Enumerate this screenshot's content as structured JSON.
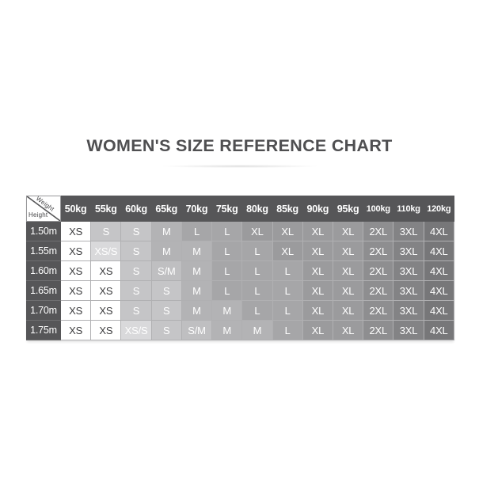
{
  "chart_data": {
    "type": "table",
    "title": "WOMEN'S SIZE REFERENCE CHART",
    "corner": {
      "top_right_label": "Weight",
      "bottom_left_label": "Height"
    },
    "weight_columns": [
      "50kg",
      "55kg",
      "60kg",
      "65kg",
      "70kg",
      "75kg",
      "80kg",
      "85kg",
      "90kg",
      "95kg",
      "100kg",
      "110kg",
      "120kg"
    ],
    "rows": [
      {
        "height": "1.50m",
        "sizes": [
          "XS",
          "S",
          "S",
          "M",
          "L",
          "L",
          "XL",
          "XL",
          "XL",
          "XL",
          "2XL",
          "3XL",
          "4XL"
        ]
      },
      {
        "height": "1.55m",
        "sizes": [
          "XS",
          "XS/S",
          "S",
          "M",
          "M",
          "L",
          "L",
          "XL",
          "XL",
          "XL",
          "2XL",
          "3XL",
          "4XL"
        ]
      },
      {
        "height": "1.60m",
        "sizes": [
          "XS",
          "XS",
          "S",
          "S/M",
          "M",
          "L",
          "L",
          "L",
          "XL",
          "XL",
          "2XL",
          "3XL",
          "4XL"
        ]
      },
      {
        "height": "1.65m",
        "sizes": [
          "XS",
          "XS",
          "S",
          "S",
          "M",
          "L",
          "L",
          "L",
          "XL",
          "XL",
          "2XL",
          "3XL",
          "4XL"
        ]
      },
      {
        "height": "1.70m",
        "sizes": [
          "XS",
          "XS",
          "S",
          "S",
          "M",
          "M",
          "L",
          "L",
          "XL",
          "XL",
          "2XL",
          "3XL",
          "4XL"
        ]
      },
      {
        "height": "1.75m",
        "sizes": [
          "XS",
          "XS",
          "XS/S",
          "S",
          "S/M",
          "M",
          "M",
          "L",
          "XL",
          "XL",
          "2XL",
          "3XL",
          "4XL"
        ]
      }
    ],
    "legend_position": "none",
    "grid": "on"
  },
  "style": {
    "header_bg": "#565658",
    "header_text": "#ffffff",
    "title_color": "#4f4f51",
    "size_colors": {
      "XS": {
        "bg": "#ffffff",
        "text": "#3c3c3e"
      },
      "XS/S": {
        "bg": "#d9d9db",
        "text": "#ffffff"
      },
      "S": {
        "bg": "#c5c5c7",
        "text": "#ffffff"
      },
      "S/M": {
        "bg": "#bfbfc1",
        "text": "#ffffff"
      },
      "M": {
        "bg": "#b3b3b5",
        "text": "#ffffff"
      },
      "L": {
        "bg": "#a6a6a8",
        "text": "#ffffff"
      },
      "XL": {
        "bg": "#9b9b9d",
        "text": "#ffffff"
      },
      "2XL": {
        "bg": "#8e8e90",
        "text": "#ffffff"
      },
      "3XL": {
        "bg": "#838385",
        "text": "#ffffff"
      },
      "4XL": {
        "bg": "#777779",
        "text": "#ffffff"
      }
    }
  }
}
